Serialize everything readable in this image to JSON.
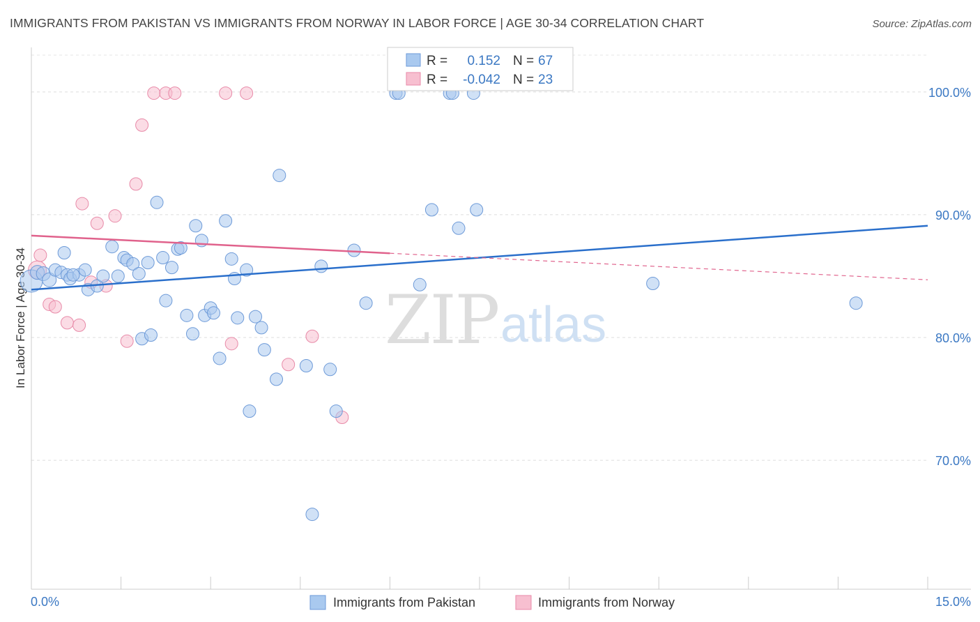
{
  "chart_data": {
    "type": "scatter",
    "title": "IMMIGRANTS FROM PAKISTAN VS IMMIGRANTS FROM NORWAY IN LABOR FORCE | AGE 30-34 CORRELATION CHART",
    "source": "Source: ZipAtlas.com",
    "ylabel": "In Labor Force | Age 30-34",
    "xlim": [
      0,
      15
    ],
    "ylim": [
      59.5,
      103
    ],
    "x_tick_labels": [
      "0.0%",
      "15.0%"
    ],
    "y_ticks": [
      {
        "value": 100,
        "label": "100.0%"
      },
      {
        "value": 90,
        "label": "90.0%"
      },
      {
        "value": 80,
        "label": "80.0%"
      },
      {
        "value": 70,
        "label": "70.0%"
      }
    ],
    "watermark": {
      "part1": "ZIP",
      "part2": "atlas"
    },
    "legend": {
      "rows": [
        {
          "r_label": "R =",
          "r_value": "0.152",
          "n_label": "N =",
          "n_value": "67"
        },
        {
          "r_label": "R =",
          "r_value": "-0.042",
          "n_label": "N =",
          "n_value": "23"
        }
      ]
    },
    "series": [
      {
        "name": "Immigrants from Pakistan",
        "color": "#a9c9ef",
        "stroke": "#6d9ad8",
        "line_color": "#2a6fcb",
        "trend": {
          "x0": 0.0,
          "y0": 83.9,
          "x1": 15.0,
          "y1": 89.1,
          "solid_until": 15.0
        },
        "points": [
          [
            0.0,
            84.6,
            16
          ],
          [
            0.1,
            85.3,
            10
          ],
          [
            0.2,
            85.2,
            10
          ],
          [
            0.3,
            84.7,
            10
          ],
          [
            0.4,
            85.5,
            9
          ],
          [
            0.5,
            85.3,
            9
          ],
          [
            0.55,
            86.9,
            9
          ],
          [
            0.6,
            85.1,
            9
          ],
          [
            0.65,
            84.8,
            9
          ],
          [
            0.8,
            85.1,
            9
          ],
          [
            0.9,
            85.5,
            9
          ],
          [
            0.95,
            83.9,
            9
          ],
          [
            1.1,
            84.2,
            9
          ],
          [
            1.2,
            85.0,
            9
          ],
          [
            1.35,
            87.4,
            9
          ],
          [
            1.45,
            85.0,
            9
          ],
          [
            1.55,
            86.5,
            9
          ],
          [
            1.6,
            86.3,
            9
          ],
          [
            1.7,
            86.0,
            9
          ],
          [
            1.8,
            85.2,
            9
          ],
          [
            1.85,
            79.9,
            9
          ],
          [
            1.95,
            86.1,
            9
          ],
          [
            2.0,
            80.2,
            9
          ],
          [
            2.1,
            91.0,
            9
          ],
          [
            2.2,
            86.5,
            9
          ],
          [
            2.25,
            83.0,
            9
          ],
          [
            2.35,
            85.7,
            9
          ],
          [
            2.45,
            87.2,
            9
          ],
          [
            2.5,
            87.3,
            9
          ],
          [
            2.6,
            81.8,
            9
          ],
          [
            2.7,
            80.3,
            9
          ],
          [
            2.75,
            89.1,
            9
          ],
          [
            2.85,
            87.9,
            9
          ],
          [
            2.9,
            81.8,
            9
          ],
          [
            3.0,
            82.4,
            9
          ],
          [
            3.05,
            82.0,
            9
          ],
          [
            3.15,
            78.3,
            9
          ],
          [
            3.25,
            89.5,
            9
          ],
          [
            3.35,
            86.4,
            9
          ],
          [
            3.4,
            84.8,
            9
          ],
          [
            3.45,
            81.6,
            9
          ],
          [
            3.6,
            85.5,
            9
          ],
          [
            3.65,
            74.0,
            9
          ],
          [
            3.75,
            81.7,
            9
          ],
          [
            3.85,
            80.8,
            9
          ],
          [
            3.9,
            79.0,
            9
          ],
          [
            4.1,
            76.6,
            9
          ],
          [
            4.15,
            93.2,
            9
          ],
          [
            4.6,
            77.7,
            9
          ],
          [
            4.7,
            65.6,
            9
          ],
          [
            4.85,
            85.8,
            9
          ],
          [
            5.0,
            77.4,
            9
          ],
          [
            5.1,
            74.0,
            9
          ],
          [
            5.4,
            87.1,
            9
          ],
          [
            5.6,
            82.8,
            9
          ],
          [
            6.1,
            99.9,
            9
          ],
          [
            6.15,
            99.9,
            9
          ],
          [
            6.5,
            84.3,
            9
          ],
          [
            6.7,
            90.4,
            9
          ],
          [
            7.0,
            99.9,
            9
          ],
          [
            7.05,
            99.9,
            9
          ],
          [
            7.15,
            88.9,
            9
          ],
          [
            7.4,
            99.9,
            9
          ],
          [
            7.45,
            90.4,
            9
          ],
          [
            10.4,
            84.4,
            9
          ],
          [
            13.8,
            82.8,
            9
          ],
          [
            0.7,
            85.1,
            9
          ]
        ]
      },
      {
        "name": "Immigrants from Norway",
        "color": "#f7bfd0",
        "stroke": "#e88aa8",
        "line_color": "#e0628c",
        "trend": {
          "x0": 0.0,
          "y0": 88.3,
          "x1": 15.0,
          "y1": 84.7,
          "solid_until": 6.0
        },
        "points": [
          [
            0.1,
            85.5,
            13
          ],
          [
            0.15,
            86.7,
            9
          ],
          [
            0.3,
            82.7,
            9
          ],
          [
            0.4,
            82.5,
            9
          ],
          [
            0.6,
            81.2,
            9
          ],
          [
            0.8,
            81.0,
            9
          ],
          [
            0.85,
            90.9,
            9
          ],
          [
            1.0,
            84.5,
            9
          ],
          [
            1.1,
            89.3,
            9
          ],
          [
            1.25,
            84.2,
            9
          ],
          [
            1.4,
            89.9,
            9
          ],
          [
            1.6,
            79.7,
            9
          ],
          [
            1.75,
            92.5,
            9
          ],
          [
            1.85,
            97.3,
            9
          ],
          [
            2.05,
            99.9,
            9
          ],
          [
            2.25,
            99.9,
            9
          ],
          [
            2.4,
            99.9,
            9
          ],
          [
            3.25,
            99.9,
            9
          ],
          [
            3.35,
            79.5,
            9
          ],
          [
            3.6,
            99.9,
            9
          ],
          [
            4.3,
            77.8,
            9
          ],
          [
            4.7,
            80.1,
            9
          ],
          [
            5.2,
            73.5,
            9
          ]
        ]
      }
    ]
  }
}
